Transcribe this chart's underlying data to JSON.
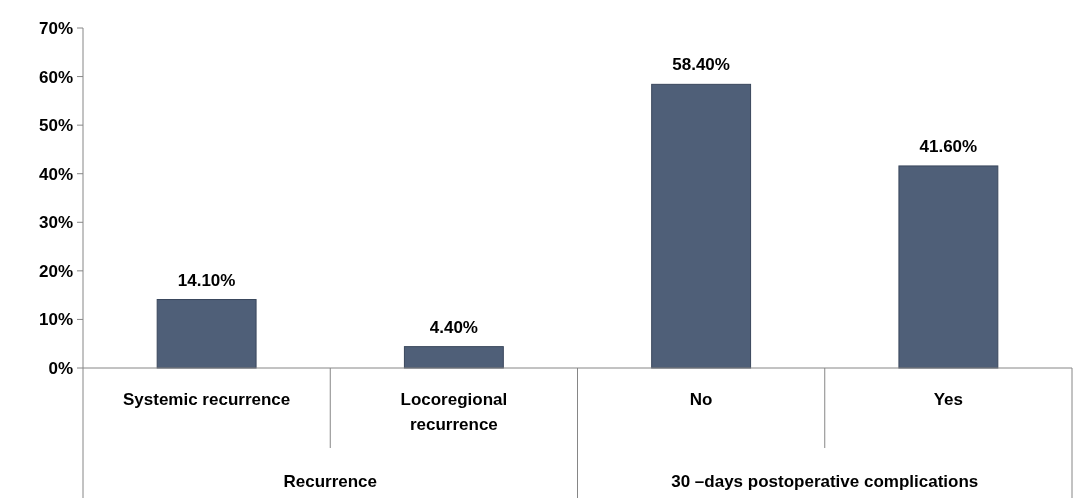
{
  "chart_data": {
    "type": "bar",
    "categories": [
      "Systemic recurrence",
      "Locoregional recurrence",
      "No",
      "Yes"
    ],
    "values": [
      14.1,
      4.4,
      58.4,
      41.6
    ],
    "color": "#4f5f78",
    "value_labels": [
      "14.10%",
      "4.40%",
      "58.40%",
      "41.60%"
    ],
    "ylim": [
      0,
      70
    ],
    "yticks": [
      {
        "value": 0,
        "label": "0%"
      },
      {
        "value": 10,
        "label": "10%"
      },
      {
        "value": 20,
        "label": "20%"
      },
      {
        "value": 30,
        "label": "30%"
      },
      {
        "value": 40,
        "label": "40%"
      },
      {
        "value": 50,
        "label": "50%"
      },
      {
        "value": 60,
        "label": "60%"
      },
      {
        "value": 70,
        "label": "70%"
      }
    ],
    "annotations": [
      "Recurrence",
      "30 –days postoperative complications"
    ],
    "grid": false
  }
}
